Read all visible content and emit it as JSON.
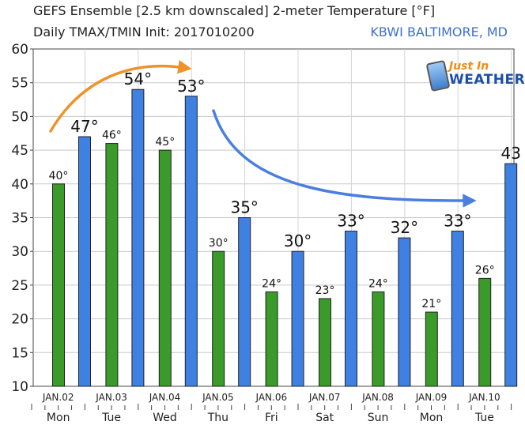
{
  "header": {
    "title_line1": "GEFS Ensemble [2.5 km downscaled] 2-meter Temperature [°F]",
    "title_line2": "Daily TMAX/TMIN Init: 2017010200",
    "station": "KBWI BALTIMORE, MD"
  },
  "logo": {
    "line1": "Just In",
    "line2": "WEATHER"
  },
  "colors": {
    "tmin_bar": "#3a9a2a",
    "tmax_bar": "#3f80e3",
    "arrow_warm": "#f0922a",
    "arrow_cool": "#4a7fe0"
  },
  "chart_data": {
    "type": "bar",
    "title": "GEFS Ensemble [2.5 km downscaled] 2-meter Temperature [°F]",
    "ylim": [
      10,
      60
    ],
    "yticks": [
      10,
      15,
      20,
      25,
      30,
      35,
      40,
      45,
      50,
      55,
      60
    ],
    "dates": [
      "JAN.02",
      "JAN.03",
      "JAN.04",
      "JAN.05",
      "JAN.06",
      "JAN.07",
      "JAN.08",
      "JAN.09",
      "JAN.10"
    ],
    "days": [
      "Mon",
      "Tue",
      "Wed",
      "Thu",
      "Fri",
      "Sat",
      "Sun",
      "Mon",
      "Tue"
    ],
    "bars": [
      {
        "kind": "tmin",
        "value": 40,
        "label": "40°"
      },
      {
        "kind": "tmax",
        "value": 47,
        "label": "47°"
      },
      {
        "kind": "tmin",
        "value": 46,
        "label": "46°"
      },
      {
        "kind": "tmax",
        "value": 54,
        "label": "54°"
      },
      {
        "kind": "tmin",
        "value": 45,
        "label": "45°"
      },
      {
        "kind": "tmax",
        "value": 53,
        "label": "53°"
      },
      {
        "kind": "tmin",
        "value": 30,
        "label": "30°"
      },
      {
        "kind": "tmax",
        "value": 35,
        "label": "35°"
      },
      {
        "kind": "tmin",
        "value": 24,
        "label": "24°"
      },
      {
        "kind": "tmax",
        "value": 30,
        "label": "30°"
      },
      {
        "kind": "tmin",
        "value": 23,
        "label": "23°"
      },
      {
        "kind": "tmax",
        "value": 33,
        "label": "33°"
      },
      {
        "kind": "tmin",
        "value": 24,
        "label": "24°"
      },
      {
        "kind": "tmax",
        "value": 32,
        "label": "32°"
      },
      {
        "kind": "tmin",
        "value": 21,
        "label": "21°"
      },
      {
        "kind": "tmax",
        "value": 33,
        "label": "33°"
      },
      {
        "kind": "tmin",
        "value": 26,
        "label": "26°"
      },
      {
        "kind": "tmax",
        "value": 43,
        "label": "43"
      }
    ]
  }
}
